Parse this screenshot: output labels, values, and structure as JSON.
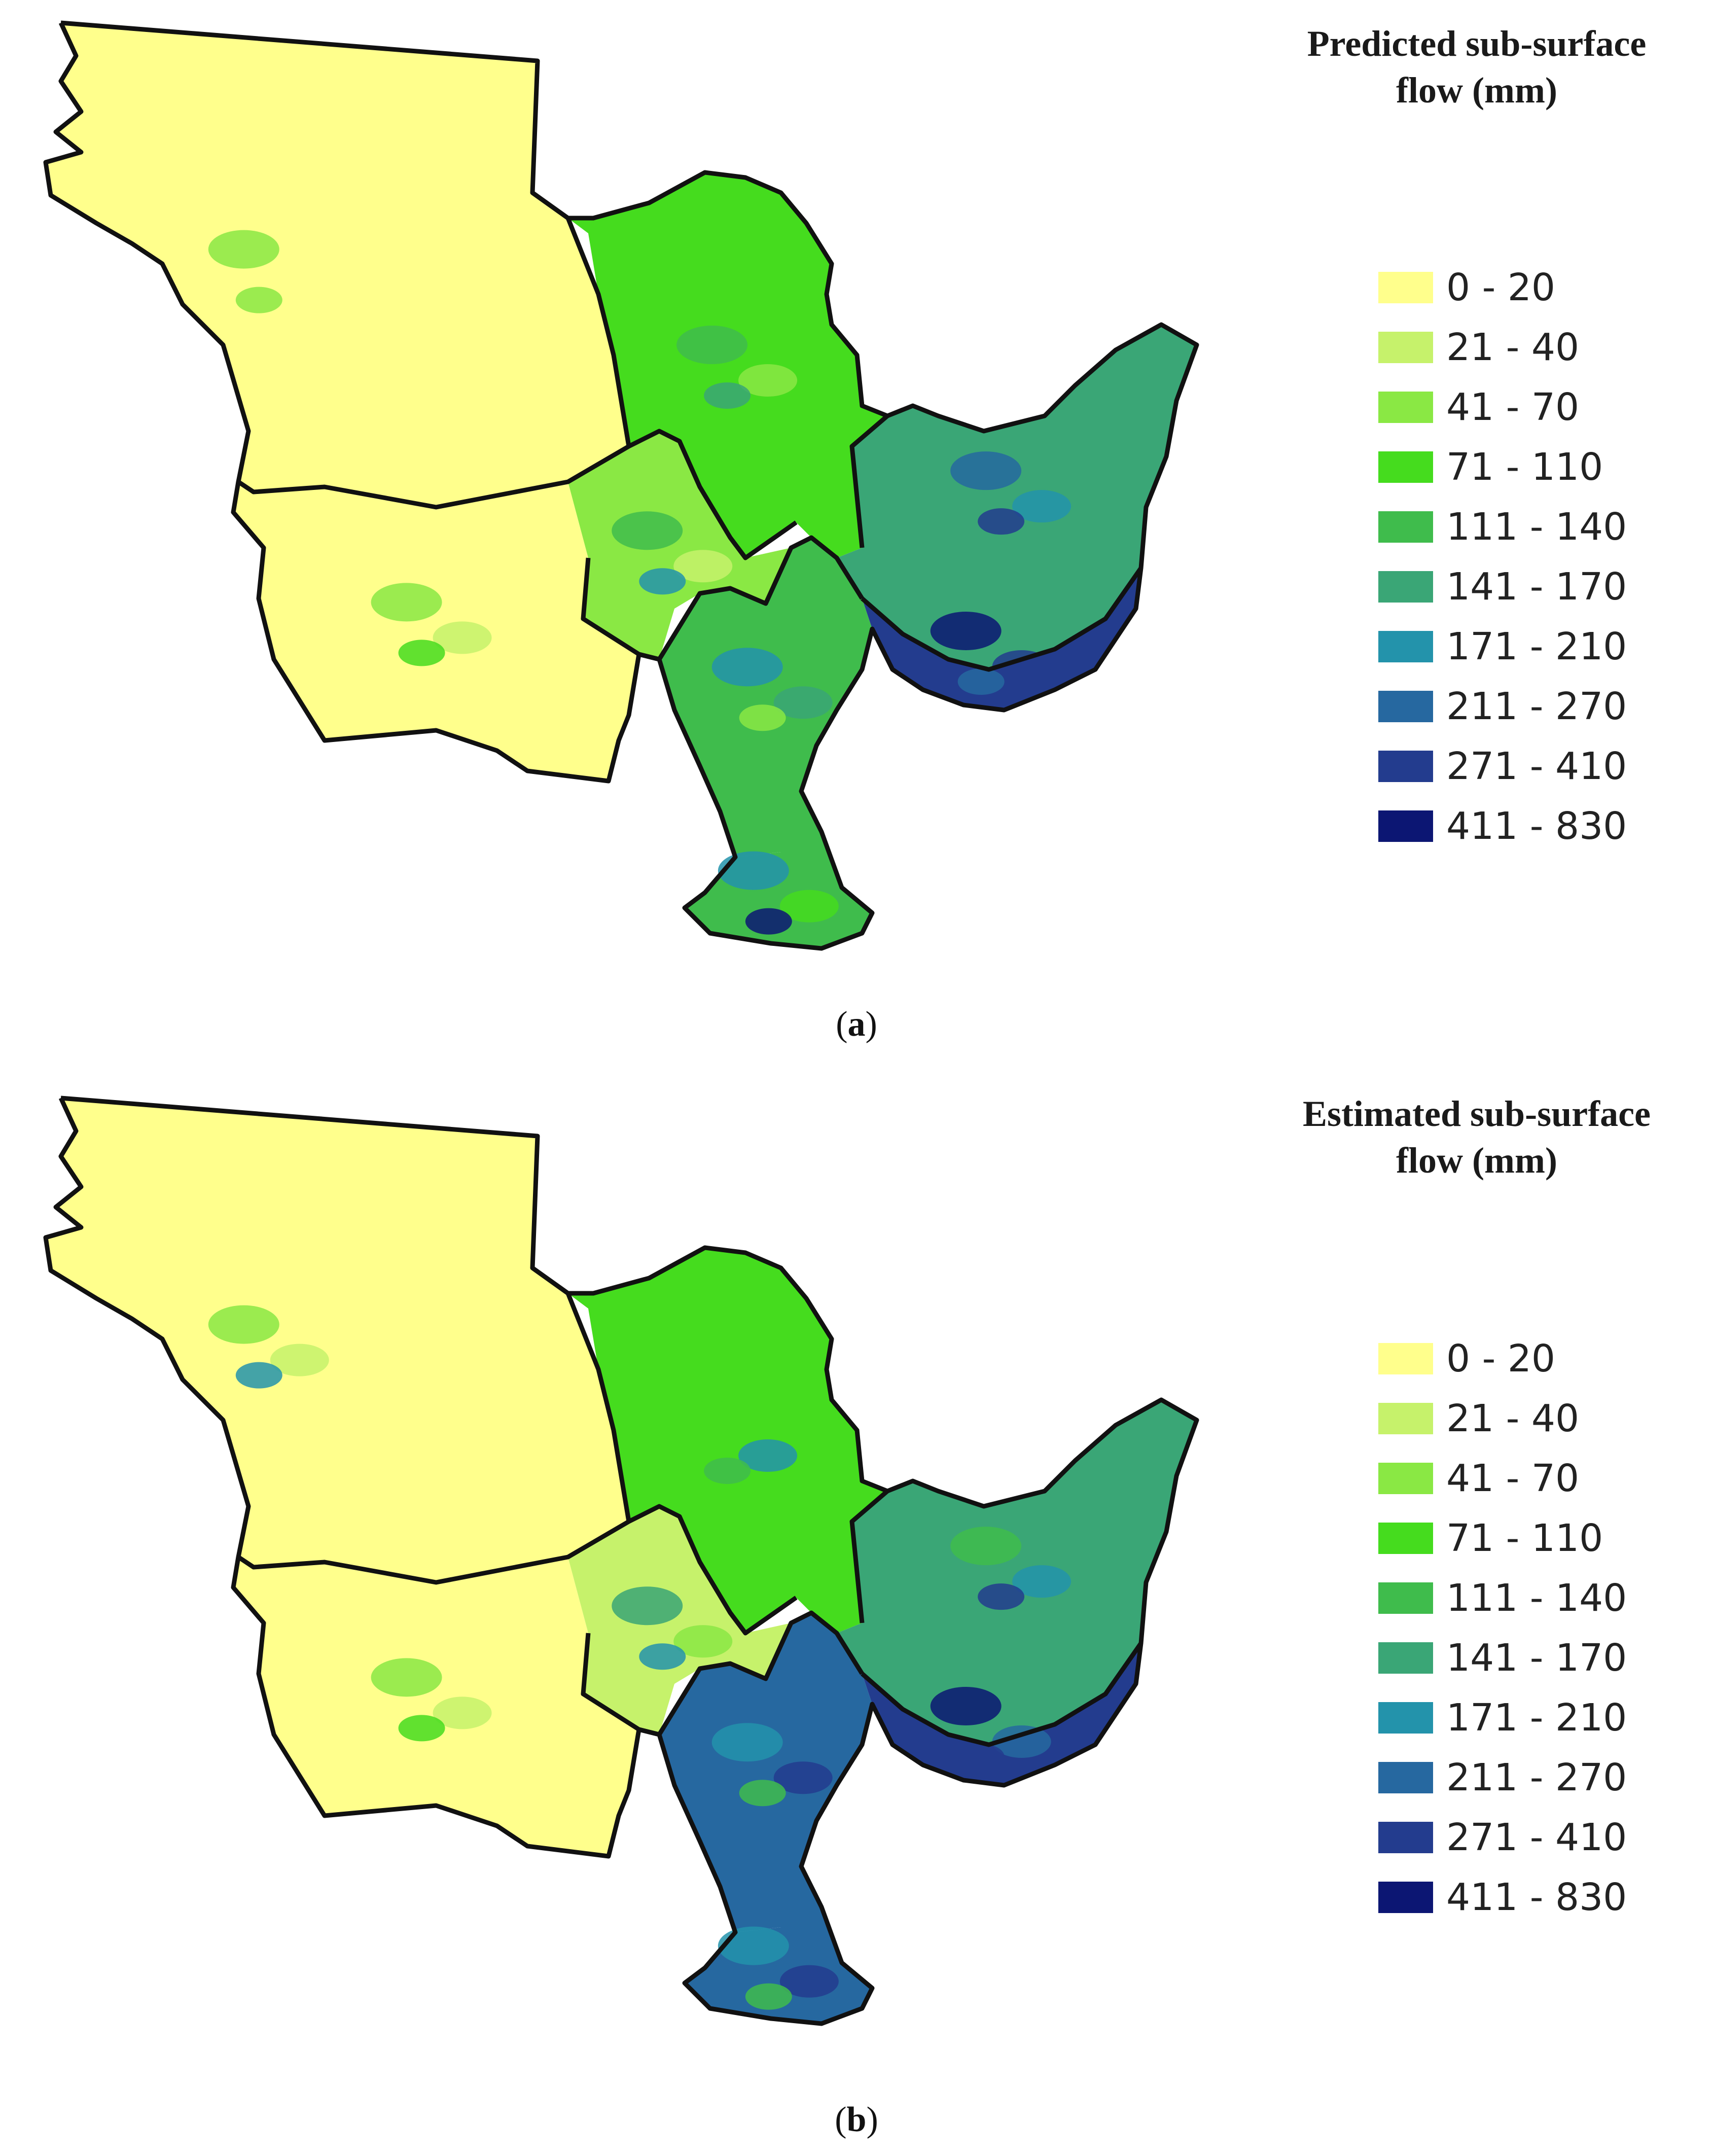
{
  "panels": [
    {
      "id": "a",
      "title_line1": "Predicted sub-surface",
      "title_line2": "flow (mm)",
      "caption_open": "(",
      "caption_letter": "a",
      "caption_close": ")"
    },
    {
      "id": "b",
      "title_line1": "Estimated sub-surface",
      "title_line2": "flow (mm)",
      "caption_open": "(",
      "caption_letter": "b",
      "caption_close": ")"
    }
  ],
  "legend": {
    "classes": [
      {
        "label": "0 - 20",
        "color": "#ffff8c"
      },
      {
        "label": "21 - 40",
        "color": "#c6f26b"
      },
      {
        "label": "41 - 70",
        "color": "#8ae844"
      },
      {
        "label": "71 - 110",
        "color": "#45dc1e"
      },
      {
        "label": "111 - 140",
        "color": "#3fbc4c"
      },
      {
        "label": "141 - 170",
        "color": "#3aa676"
      },
      {
        "label": "171 - 210",
        "color": "#2393ab"
      },
      {
        "label": "211 - 270",
        "color": "#2668a0"
      },
      {
        "label": "271 - 410",
        "color": "#233c8e"
      },
      {
        "label": "411 - 830",
        "color": "#0c1673"
      }
    ]
  },
  "map_zones": {
    "a": {
      "northwest_basin": [
        0,
        2,
        0,
        2
      ],
      "west_basin": [
        0,
        2,
        1,
        3
      ],
      "north_central_basin": [
        3,
        4,
        2,
        5
      ],
      "central_basin": [
        2,
        4,
        1,
        6
      ],
      "south_central_basin": [
        4,
        6,
        5,
        2
      ],
      "east_basin": [
        5,
        7,
        6,
        8
      ],
      "southeast_strip": [
        8,
        9,
        8,
        7
      ],
      "south_tip": [
        4,
        6,
        3,
        9
      ]
    },
    "b": {
      "northwest_basin": [
        0,
        2,
        1,
        6
      ],
      "west_basin": [
        0,
        2,
        1,
        3
      ],
      "north_central_basin": [
        3,
        3,
        6,
        4
      ],
      "central_basin": [
        1,
        5,
        2,
        6
      ],
      "south_central_basin": [
        7,
        6,
        8,
        4
      ],
      "east_basin": [
        5,
        4,
        6,
        8
      ],
      "southeast_strip": [
        8,
        9,
        7,
        8
      ],
      "south_tip": [
        7,
        6,
        8,
        4
      ]
    }
  }
}
